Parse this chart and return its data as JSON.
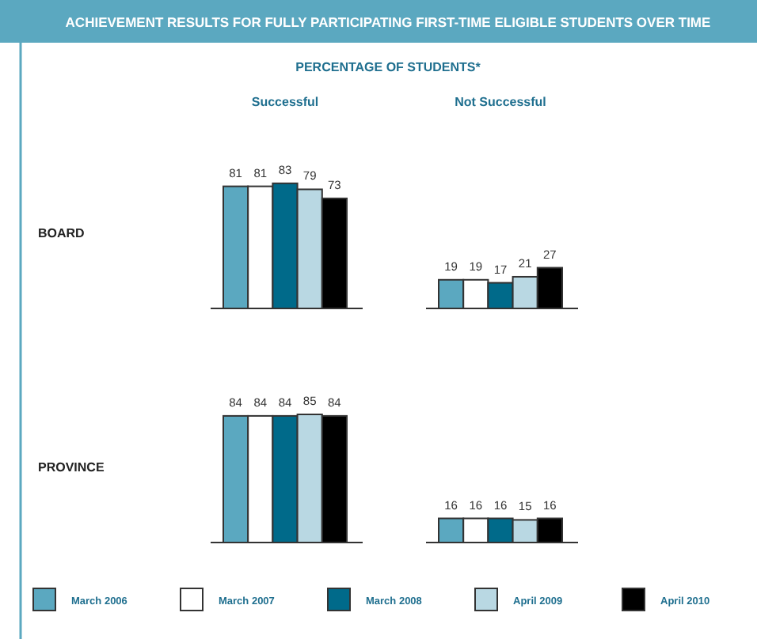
{
  "chart_data": [
    {
      "type": "bar",
      "title": "ACHIEVEMENT RESULTS FOR FULLY PARTICIPATING FIRST-TIME ELIGIBLE STUDENTS OVER TIME",
      "subtitle": "PERCENTAGE OF STUDENTS*",
      "ylabel": "BOARD",
      "categories": [
        "Successful",
        "Not Successful"
      ],
      "series": [
        {
          "color": "#5ba8c0",
          "values": [
            81,
            19
          ]
        },
        {
          "color": "#ffffff",
          "values": [
            81,
            19
          ]
        },
        {
          "color": "#006a8a",
          "values": [
            83,
            17
          ]
        },
        {
          "color": "#b9d8e3",
          "values": [
            79,
            21
          ]
        },
        {
          "color": "#000000",
          "values": [
            73,
            27
          ]
        }
      ],
      "data_labels": true,
      "tick_labels": "x",
      "legend": false
    },
    {
      "type": "bar",
      "ylabel": "PROVINCE",
      "categories": [
        null,
        null
      ],
      "series": [
        {
          "name": "March 2006",
          "color": "#5ba8c0",
          "values": [
            84,
            16
          ]
        },
        {
          "name": "March 2007",
          "color": "#ffffff",
          "values": [
            84,
            16
          ]
        },
        {
          "name": "March 2008",
          "color": "#006a8a",
          "values": [
            84,
            16
          ]
        },
        {
          "name": "April 2009",
          "color": "#b9d8e3",
          "values": [
            85,
            15
          ]
        },
        {
          "name": "April 2010",
          "color": "#000000",
          "values": [
            84,
            16
          ]
        }
      ],
      "data_labels": true,
      "tick_labels": false,
      "legend": "bottom"
    }
  ]
}
